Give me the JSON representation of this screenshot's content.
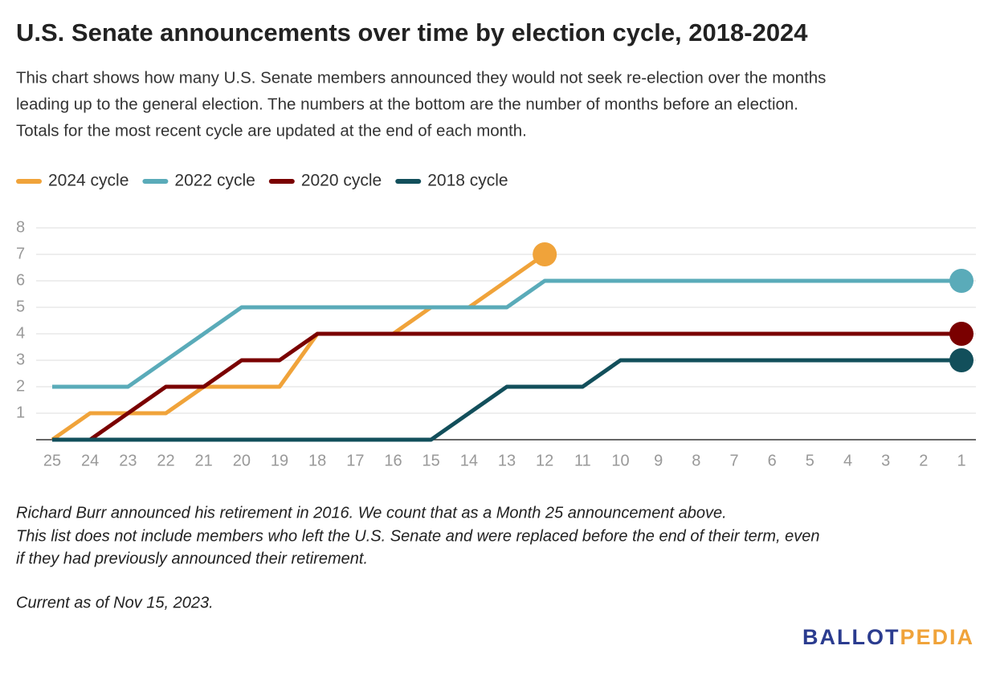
{
  "chart_data": {
    "type": "line",
    "title": "U.S. Senate announcements over time by election cycle, 2018-2024",
    "subtitle": [
      "This chart shows how many U.S. Senate members announced they would not seek re-election over the months",
      "leading up to the general election. The numbers at the bottom are the number of months before an election.",
      "Totals for the most recent cycle are updated at the end of each month."
    ],
    "categories": [
      "25",
      "24",
      "23",
      "22",
      "21",
      "20",
      "19",
      "18",
      "17",
      "16",
      "15",
      "14",
      "13",
      "12",
      "11",
      "10",
      "9",
      "8",
      "7",
      "6",
      "5",
      "4",
      "3",
      "2",
      "1"
    ],
    "series": [
      {
        "name": "2024 cycle",
        "color": "#f0a33a",
        "values": [
          0,
          1,
          1,
          1,
          2,
          2,
          2,
          4,
          4,
          4,
          5,
          5,
          6,
          7,
          null,
          null,
          null,
          null,
          null,
          null,
          null,
          null,
          null,
          null,
          null
        ]
      },
      {
        "name": "2022 cycle",
        "color": "#5aabb9",
        "values": [
          2,
          2,
          2,
          3,
          4,
          5,
          5,
          5,
          5,
          5,
          5,
          5,
          5,
          6,
          6,
          6,
          6,
          6,
          6,
          6,
          6,
          6,
          6,
          6,
          6
        ]
      },
      {
        "name": "2020 cycle",
        "color": "#7a0000",
        "values": [
          0,
          0,
          1,
          2,
          2,
          3,
          3,
          4,
          4,
          4,
          4,
          4,
          4,
          4,
          4,
          4,
          4,
          4,
          4,
          4,
          4,
          4,
          4,
          4,
          4
        ]
      },
      {
        "name": "2018 cycle",
        "color": "#124f5b",
        "values": [
          0,
          0,
          0,
          0,
          0,
          0,
          0,
          0,
          0,
          0,
          0,
          1,
          2,
          2,
          2,
          3,
          3,
          3,
          3,
          3,
          3,
          3,
          3,
          3,
          3
        ]
      }
    ],
    "ylim": [
      0,
      8
    ],
    "yticks": [
      1,
      2,
      3,
      4,
      5,
      6,
      7,
      8
    ],
    "grid": true,
    "notes": [
      "Richard Burr announced his retirement in 2016. We count that as a Month 25 announcement above.",
      "This list does not include members who left the U.S. Senate and were replaced before the end of their term, even",
      "if they had previously announced their retirement.",
      "Current as of Nov 15, 2023."
    ],
    "logo": [
      "BALLOT",
      "PEDIA"
    ]
  }
}
